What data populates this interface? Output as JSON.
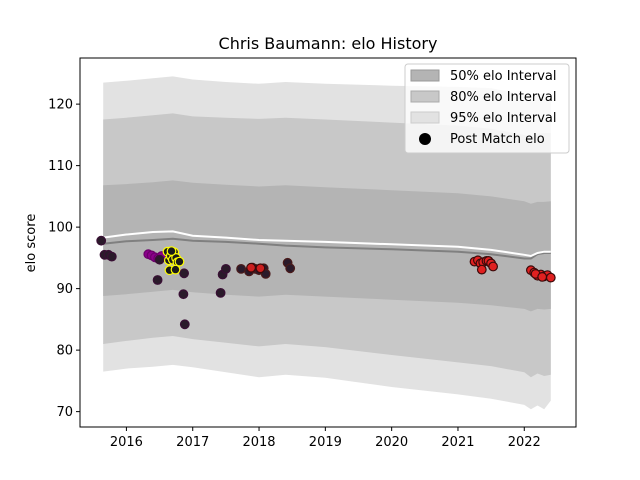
{
  "chart_data": {
    "type": "scatter",
    "title": "Chris Baumann: elo History",
    "xlabel": "",
    "ylabel": "elo score",
    "xlim": [
      2015.3,
      2022.78
    ],
    "ylim": [
      67.5,
      127.5
    ],
    "x_ticks": [
      2016,
      2017,
      2018,
      2019,
      2020,
      2021,
      2022
    ],
    "y_ticks": [
      70,
      80,
      90,
      100,
      110,
      120
    ],
    "grid": false,
    "legend_position": "top-right",
    "legend": [
      {
        "label": "50% elo Interval",
        "kind": "patch",
        "color": "#b4b4b4"
      },
      {
        "label": "80% elo Interval",
        "kind": "patch",
        "color": "#c8c8c8"
      },
      {
        "label": "95% elo Interval",
        "kind": "patch",
        "color": "#e2e2e2"
      },
      {
        "label": "Post Match elo",
        "kind": "marker",
        "color": "#000000"
      }
    ],
    "bands": {
      "x": [
        2015.65,
        2016.0,
        2016.4,
        2016.7,
        2017.0,
        2017.5,
        2018.0,
        2018.4,
        2019.0,
        2020.0,
        2021.0,
        2021.5,
        2022.0,
        2022.1,
        2022.2,
        2022.3,
        2022.4
      ],
      "p95_upper": [
        123.5,
        123.8,
        124.2,
        124.5,
        124.0,
        123.6,
        123.3,
        123.6,
        123.3,
        123.0,
        122.8,
        122.6,
        121.5,
        121.0,
        121.6,
        121.8,
        121.9
      ],
      "p95_lower": [
        76.5,
        77.0,
        77.3,
        77.6,
        77.2,
        76.4,
        75.6,
        76.0,
        75.5,
        74.0,
        72.8,
        72.1,
        71.1,
        70.4,
        71.0,
        70.4,
        71.8
      ],
      "p80_upper": [
        117.5,
        117.8,
        118.2,
        118.5,
        118.0,
        117.8,
        117.6,
        117.8,
        117.5,
        117.0,
        116.5,
        116.0,
        115.0,
        114.5,
        115.2,
        115.3,
        115.3
      ],
      "p80_lower": [
        81.0,
        81.5,
        82.0,
        82.3,
        81.8,
        81.2,
        80.6,
        81.0,
        80.5,
        79.2,
        78.0,
        77.4,
        76.4,
        75.6,
        76.2,
        75.8,
        76.0
      ],
      "p50_upper": [
        106.8,
        107.0,
        107.3,
        107.6,
        107.2,
        106.9,
        106.6,
        106.8,
        106.5,
        106.0,
        105.5,
        105.0,
        104.2,
        103.8,
        104.1,
        104.1,
        104.2
      ],
      "p50_lower": [
        88.8,
        89.1,
        89.5,
        89.8,
        89.4,
        89.0,
        88.7,
        89.0,
        88.7,
        88.2,
        87.7,
        87.3,
        86.7,
        86.3,
        86.7,
        86.6,
        86.7
      ]
    },
    "series": [
      {
        "name": "Post Match elo (line)",
        "kind": "line",
        "color": "#808080",
        "x": [
          2015.65,
          2016.0,
          2016.4,
          2016.7,
          2017.0,
          2017.5,
          2018.0,
          2018.4,
          2019.0,
          2020.0,
          2021.0,
          2021.5,
          2022.0,
          2022.1,
          2022.2,
          2022.3,
          2022.4
        ],
        "y": [
          97.3,
          97.7,
          97.9,
          98.1,
          97.8,
          97.6,
          97.3,
          97.0,
          96.7,
          96.4,
          96.0,
          95.6,
          94.9,
          94.9,
          95.6,
          95.8,
          95.8
        ]
      },
      {
        "name": "Pre Match elo (line)",
        "kind": "line",
        "color": "#ffffff",
        "x": [
          2015.65,
          2016.0,
          2016.4,
          2016.7,
          2017.0,
          2017.5,
          2018.0,
          2018.4,
          2019.0,
          2020.0,
          2021.0,
          2021.5,
          2022.0,
          2022.1,
          2022.2,
          2022.3,
          2022.4
        ],
        "y": [
          98.3,
          98.8,
          99.2,
          99.3,
          98.6,
          98.3,
          97.9,
          97.8,
          97.6,
          97.2,
          96.8,
          96.3,
          95.5,
          95.3,
          95.8,
          96.0,
          96.0
        ]
      },
      {
        "name": "Post Match elo 2015-2016",
        "kind": "points",
        "fill": "#2a1a2a",
        "edge": "#3a0f35",
        "x": [
          2015.62,
          2015.67,
          2015.73,
          2015.78
        ],
        "y": [
          97.8,
          95.5,
          95.5,
          95.2
        ]
      },
      {
        "name": "Post Match elo 2016 (purple)",
        "kind": "points",
        "fill": "#8b008b",
        "edge": "#6a006a",
        "x": [
          2016.33,
          2016.38,
          2016.43,
          2016.48,
          2016.53
        ],
        "y": [
          95.6,
          95.4,
          95.1,
          94.9,
          95.3
        ]
      },
      {
        "name": "Post Match elo 2016 (dark)",
        "kind": "points",
        "fill": "#2a1a2a",
        "edge": "#3a0f35",
        "x": [
          2016.47,
          2016.5,
          2016.87,
          2016.86,
          2016.88,
          2017.42,
          2017.45,
          2017.5
        ],
        "y": [
          91.4,
          94.7,
          92.5,
          89.1,
          84.2,
          89.3,
          92.3,
          93.2
        ]
      },
      {
        "name": "Post Match elo 2016 (yellow)",
        "kind": "points",
        "fill": "#1a1a1a",
        "edge": "#ffff00",
        "x": [
          2016.62,
          2016.64,
          2016.67,
          2016.7,
          2016.72,
          2016.75,
          2016.77,
          2016.8,
          2016.65,
          2016.68,
          2016.74
        ],
        "y": [
          96.0,
          94.6,
          95.3,
          94.7,
          95.9,
          95.0,
          94.3,
          94.4,
          93.0,
          96.1,
          93.1
        ]
      },
      {
        "name": "Post Match elo 2017-2018",
        "kind": "points",
        "fill": "#2a1a2a",
        "edge": "#4a1a1a",
        "x": [
          2017.73,
          2017.85,
          2017.9,
          2017.95,
          2018.0,
          2018.07,
          2018.1,
          2018.43,
          2018.47
        ],
        "y": [
          93.2,
          92.8,
          93.4,
          93.2,
          93.0,
          93.3,
          92.4,
          94.2,
          93.3
        ]
      },
      {
        "name": "Post Match elo 2017-2018 (red)",
        "kind": "points",
        "fill": "#cc1f1f",
        "edge": "#3a0a0a",
        "x": [
          2017.88,
          2018.02
        ],
        "y": [
          93.4,
          93.3
        ]
      },
      {
        "name": "Post Match elo 2021",
        "kind": "points",
        "fill": "#e02020",
        "edge": "#3a0a0a",
        "x": [
          2021.25,
          2021.3,
          2021.34,
          2021.38,
          2021.43,
          2021.46,
          2021.5,
          2021.53,
          2021.36
        ],
        "y": [
          94.4,
          94.6,
          94.1,
          94.3,
          94.5,
          94.5,
          94.1,
          93.6,
          93.1
        ]
      },
      {
        "name": "Post Match elo 2022",
        "kind": "points",
        "fill": "#e02020",
        "edge": "#3a0a0a",
        "x": [
          2022.1,
          2022.15,
          2022.2,
          2022.25,
          2022.3,
          2022.35,
          2022.4,
          2022.17,
          2022.27
        ],
        "y": [
          93.0,
          92.6,
          92.1,
          92.3,
          92.0,
          92.2,
          91.8,
          92.4,
          91.9
        ]
      }
    ]
  }
}
